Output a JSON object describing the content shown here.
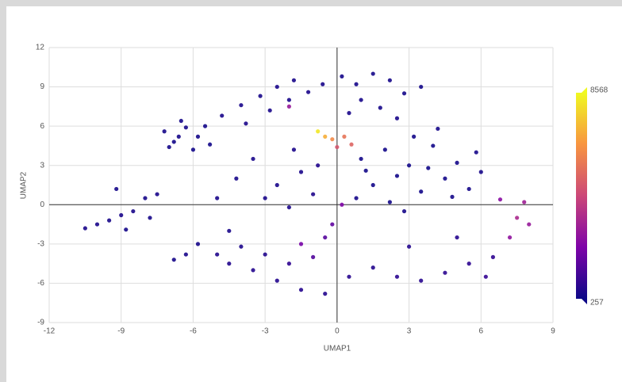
{
  "chart_data": {
    "type": "scatter",
    "x_label": "UMAP1",
    "y_label": "UMAP2",
    "xlim": [
      -12,
      9
    ],
    "xticks": [
      -12,
      -9,
      -6,
      -3,
      0,
      3,
      6,
      9
    ],
    "ylim": [
      -9,
      12
    ],
    "yticks": [
      -9,
      -6,
      -3,
      0,
      3,
      6,
      9,
      12
    ],
    "grid": true,
    "colormap": "plasma",
    "clim": [
      257,
      8568
    ],
    "x": [
      -7.2,
      -6.8,
      -6.3,
      -5.8,
      -6.0,
      -7.0,
      -5.5,
      -6.5,
      -5.3,
      -6.6,
      -10.5,
      -10.0,
      -9.5,
      -9.0,
      -8.5,
      -9.2,
      -8.0,
      -7.5,
      -8.8,
      -7.8,
      -4.8,
      -4.0,
      -3.2,
      -2.5,
      -1.8,
      -3.8,
      -2.8,
      -2.0,
      -1.2,
      -0.6,
      0.2,
      0.8,
      1.5,
      2.2,
      1.0,
      2.8,
      0.5,
      1.8,
      3.5,
      2.5,
      1.0,
      2.0,
      3.0,
      4.0,
      5.0,
      1.5,
      2.5,
      3.5,
      4.5,
      5.5,
      0.8,
      2.2,
      3.2,
      4.2,
      5.8,
      6.0,
      1.2,
      3.8,
      4.8,
      2.8,
      -1.5,
      -2.5,
      -3.5,
      -4.2,
      -1.0,
      -2.0,
      -3.0,
      -5.0,
      -1.8,
      -0.8,
      -5.0,
      -4.5,
      -3.5,
      -2.5,
      -1.5,
      -0.5,
      -4.0,
      -3.0,
      -2.0,
      -1.0,
      0.5,
      1.5,
      2.5,
      3.5,
      4.5,
      5.5,
      6.5,
      3.0,
      5.0,
      6.2,
      7.5,
      7.8,
      7.2,
      8.0,
      6.8,
      -0.8,
      -0.5,
      -0.2,
      0.3,
      0.6,
      0.0,
      -1.5,
      -0.2,
      0.2,
      -0.5,
      -6.8,
      -6.3,
      -5.8,
      -4.5,
      -2.0
    ],
    "y": [
      5.6,
      4.8,
      5.9,
      5.2,
      4.2,
      4.4,
      6.0,
      6.4,
      4.6,
      5.2,
      -1.8,
      -1.5,
      -1.2,
      -0.8,
      -0.5,
      1.2,
      0.5,
      0.8,
      -1.9,
      -1.0,
      6.8,
      7.6,
      8.3,
      9.0,
      9.5,
      6.2,
      7.2,
      8.0,
      8.6,
      9.2,
      9.8,
      9.2,
      10.0,
      9.5,
      8.0,
      8.5,
      7.0,
      7.4,
      9.0,
      6.6,
      3.5,
      4.2,
      3.0,
      4.5,
      3.2,
      1.5,
      2.2,
      1.0,
      2.0,
      1.2,
      0.5,
      0.2,
      5.2,
      5.8,
      4.0,
      2.5,
      2.6,
      2.8,
      0.6,
      -0.5,
      2.5,
      1.5,
      3.5,
      2.0,
      0.8,
      -0.2,
      0.5,
      0.5,
      4.2,
      3.0,
      -3.8,
      -4.5,
      -5.0,
      -5.8,
      -6.5,
      -6.8,
      -3.2,
      -3.8,
      -4.5,
      -4.0,
      -5.5,
      -4.8,
      -5.5,
      -5.8,
      -5.2,
      -4.5,
      -4.0,
      -3.2,
      -2.5,
      -5.5,
      -1.0,
      0.2,
      -2.5,
      -1.5,
      0.4,
      5.6,
      5.2,
      5.0,
      5.2,
      4.6,
      4.4,
      -3.0,
      -1.5,
      0.0,
      -2.5,
      -4.2,
      -3.8,
      -3.0,
      -2.0,
      7.5
    ],
    "values": [
      420,
      380,
      450,
      400,
      360,
      410,
      390,
      430,
      370,
      440,
      520,
      480,
      460,
      500,
      470,
      430,
      450,
      490,
      410,
      440,
      500,
      480,
      460,
      510,
      470,
      530,
      490,
      450,
      520,
      480,
      420,
      450,
      400,
      430,
      460,
      410,
      480,
      440,
      390,
      470,
      380,
      360,
      350,
      370,
      400,
      390,
      340,
      360,
      380,
      410,
      430,
      370,
      390,
      420,
      440,
      460,
      350,
      330,
      400,
      420,
      520,
      480,
      500,
      460,
      600,
      550,
      470,
      490,
      530,
      620,
      600,
      650,
      700,
      680,
      720,
      690,
      560,
      620,
      900,
      1500,
      750,
      700,
      800,
      760,
      820,
      880,
      900,
      680,
      720,
      1000,
      3500,
      3200,
      2800,
      3000,
      2600,
      8200,
      7000,
      6200,
      5600,
      5200,
      4800,
      2200,
      1800,
      2400,
      1600,
      450,
      480,
      430,
      500,
      3000
    ]
  }
}
